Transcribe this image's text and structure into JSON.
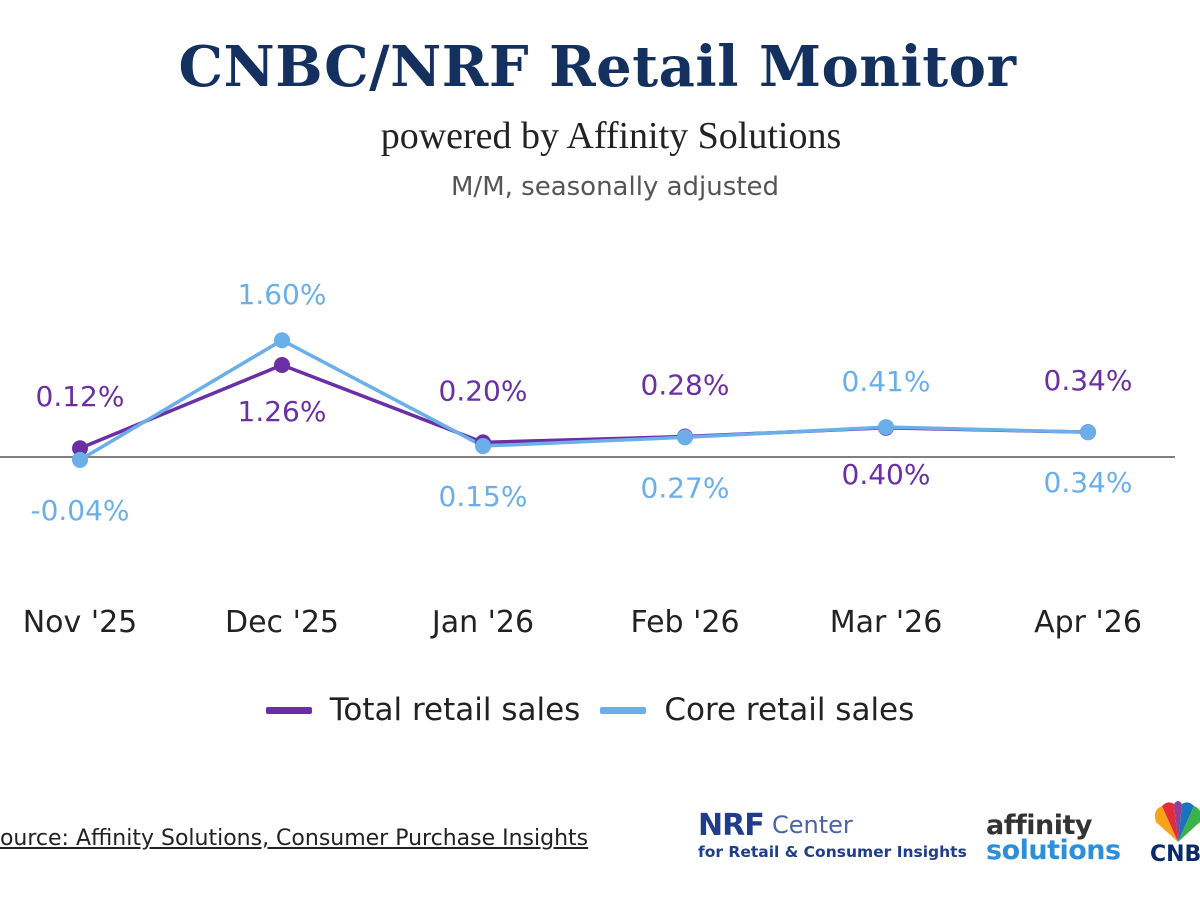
{
  "header": {
    "title": "CNBC/NRF Retail Monitor",
    "subtitle": "powered by Affinity Solutions",
    "note": "M/M, seasonally adjusted"
  },
  "chart_data": {
    "type": "line",
    "categories": [
      "Nov '25",
      "Dec '25",
      "Jan '26",
      "Feb '26",
      "Mar '26",
      "Apr '26"
    ],
    "series": [
      {
        "name": "Total retail sales",
        "color": "#6a2fa5",
        "values": [
          0.12,
          1.26,
          0.2,
          0.28,
          0.4,
          0.34
        ],
        "labels": [
          "0.12%",
          "1.26%",
          "0.20%",
          "0.28%",
          "0.40%",
          "0.34%"
        ]
      },
      {
        "name": "Core retail sales",
        "color": "#6aaeea",
        "values": [
          -0.04,
          1.6,
          0.15,
          0.27,
          0.41,
          0.34
        ],
        "labels": [
          "-0.04%",
          "1.60%",
          "0.15%",
          "0.27%",
          "0.41%",
          "0.34%"
        ]
      }
    ],
    "ylim": [
      -1.2,
      2.8
    ],
    "baseline": 0,
    "grid": false,
    "legend": "bottom"
  },
  "footer": {
    "source": "Source: Affinity Solutions, Consumer Purchase Insights",
    "logos": {
      "nrf_mark": "NRF",
      "nrf_center": "Center",
      "nrf_tagline": "for Retail & Consumer Insights",
      "affinity_top": "affinity",
      "affinity_bottom": "solutions",
      "cnbc": "CNBC",
      "cnbc_icon": "peacock-icon"
    }
  }
}
